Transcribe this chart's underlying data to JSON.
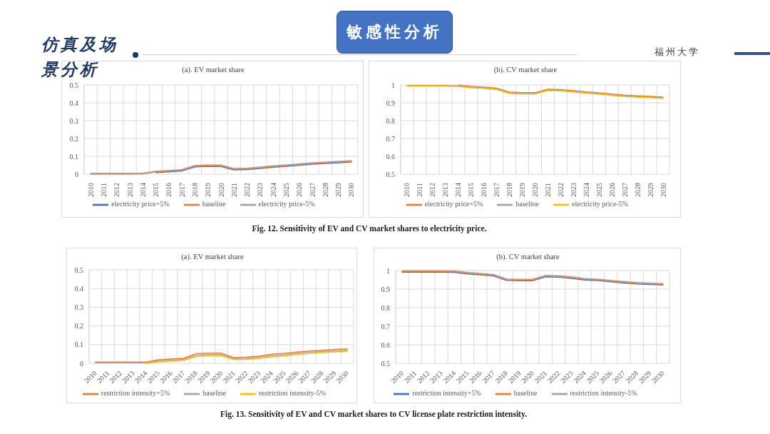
{
  "chart_data": [
    {
      "type": "line",
      "title": "(a). EV market share",
      "categories": [
        "2010",
        "2011",
        "2012",
        "2013",
        "2014",
        "2015",
        "2016",
        "2017",
        "2018",
        "2019",
        "2020",
        "2021",
        "2022",
        "2023",
        "2024",
        "2025",
        "2026",
        "2027",
        "2028",
        "2029",
        "2030"
      ],
      "series": [
        {
          "name": "electricity price+5%",
          "color": "#4472c4",
          "values": [
            null,
            null,
            null,
            null,
            null,
            0.009,
            0.013,
            0.018,
            0.041,
            0.044,
            0.043,
            0.024,
            0.026,
            0.032,
            0.039,
            0.044,
            0.05,
            0.056,
            0.06,
            0.064,
            0.068
          ]
        },
        {
          "name": "baseline",
          "color": "#ed7d31",
          "values": [
            0.001,
            0.001,
            0.001,
            0.001,
            0.002,
            0.013,
            0.017,
            0.022,
            0.045,
            0.048,
            0.047,
            0.028,
            0.03,
            0.036,
            0.043,
            0.048,
            0.054,
            0.06,
            0.064,
            0.068,
            0.072
          ]
        },
        {
          "name": "electricity price-5%",
          "color": "#a5a5a5",
          "values": [
            0.005,
            0.005,
            0.005,
            0.005,
            0.006,
            0.017,
            0.021,
            0.026,
            0.049,
            0.052,
            0.051,
            0.032,
            0.034,
            0.04,
            0.047,
            0.052,
            0.058,
            0.064,
            0.068,
            0.072,
            0.076
          ]
        }
      ],
      "ylim": [
        0,
        0.5
      ],
      "yticks": [
        0,
        0.1,
        0.2,
        0.3,
        0.4,
        0.5
      ],
      "grid": true,
      "legend": "bottom",
      "marker": "none",
      "annotations": [
        "仿真及场景分析",
        "敏感性分析",
        "福州大学",
        "Fig. 12. Sensitivity of EV and CV market shares to electricity price."
      ]
    },
    {
      "type": "line",
      "title": "(b). CV market share",
      "categories": [
        "2010",
        "2011",
        "2012",
        "2013",
        "2014",
        "2015",
        "2016",
        "2017",
        "2018",
        "2019",
        "2020",
        "2021",
        "2022",
        "2023",
        "2024",
        "2025",
        "2026",
        "2027",
        "2028",
        "2029",
        "2030"
      ],
      "series": [
        {
          "name": "electricity price+5%",
          "color": "#ed7d31",
          "values": [
            null,
            null,
            null,
            null,
            0.999,
            0.992,
            0.988,
            0.982,
            0.96,
            0.957,
            0.957,
            0.976,
            0.974,
            0.968,
            0.961,
            0.956,
            0.949,
            0.943,
            0.939,
            0.936,
            0.932
          ]
        },
        {
          "name": "baseline",
          "color": "#a5a5a5",
          "values": [
            0.997,
            0.997,
            0.997,
            0.997,
            0.995,
            0.988,
            0.984,
            0.978,
            0.956,
            0.953,
            0.953,
            0.972,
            0.97,
            0.964,
            0.957,
            0.952,
            0.945,
            0.939,
            0.935,
            0.932,
            0.928
          ]
        },
        {
          "name": "electricity price-5%",
          "color": "#ffc000",
          "values": [
            0.993,
            0.993,
            0.993,
            0.993,
            0.991,
            0.984,
            0.98,
            0.974,
            0.952,
            0.949,
            0.949,
            0.968,
            0.966,
            0.96,
            0.953,
            0.948,
            0.941,
            0.935,
            0.931,
            0.928,
            0.924
          ]
        }
      ],
      "ylim": [
        0.5,
        1
      ],
      "yticks": [
        0.5,
        0.6,
        0.7,
        0.8,
        0.9,
        1
      ],
      "grid": true,
      "legend": "bottom",
      "marker": "none"
    },
    {
      "type": "line",
      "title": "(a). EV market share",
      "categories": [
        "2010",
        "2011",
        "2012",
        "2013",
        "2014",
        "2015",
        "2016",
        "2017",
        "2018",
        "2019",
        "2020",
        "2021",
        "2022",
        "2023",
        "2024",
        "2025",
        "2026",
        "2027",
        "2028",
        "2029",
        "2030"
      ],
      "series": [
        {
          "name": "restriction intensity+5%",
          "color": "#ed7d31",
          "values": [
            0.007,
            0.007,
            0.007,
            0.007,
            0.007,
            0.019,
            0.023,
            0.027,
            0.052,
            0.054,
            0.054,
            0.031,
            0.033,
            0.038,
            0.049,
            0.053,
            0.06,
            0.066,
            0.07,
            0.074,
            0.077
          ]
        },
        {
          "name": "baseline",
          "color": "#a5a5a5",
          "values": [
            0.003,
            0.003,
            0.003,
            0.003,
            0.003,
            0.013,
            0.017,
            0.021,
            0.044,
            0.047,
            0.047,
            0.026,
            0.027,
            0.032,
            0.041,
            0.046,
            0.053,
            0.059,
            0.063,
            0.067,
            0.07
          ]
        },
        {
          "name": "restriction intensity-5%",
          "color": "#ffc000",
          "values": [
            null,
            null,
            null,
            null,
            0.0,
            0.007,
            0.011,
            0.015,
            0.036,
            0.04,
            0.04,
            0.02,
            0.021,
            0.026,
            0.034,
            0.039,
            0.046,
            0.052,
            0.057,
            0.061,
            0.064
          ]
        }
      ],
      "ylim": [
        0,
        0.5
      ],
      "yticks": [
        0,
        0.1,
        0.2,
        0.3,
        0.4,
        0.5
      ],
      "grid": true,
      "legend": "bottom",
      "marker": "none",
      "annotations": [
        "Fig. 13. Sensitivity of EV and CV market shares to CV license plate restriction intensity."
      ]
    },
    {
      "type": "line",
      "title": "(b). CV market share",
      "categories": [
        "2010",
        "2011",
        "2012",
        "2013",
        "2014",
        "2015",
        "2016",
        "2017",
        "2018",
        "2019",
        "2020",
        "2021",
        "2022",
        "2023",
        "2024",
        "2025",
        "2026",
        "2027",
        "2028",
        "2029",
        "2030"
      ],
      "series": [
        {
          "name": "restriction intensity+5%",
          "color": "#4472c4",
          "values": [
            0.991,
            0.991,
            0.991,
            0.991,
            0.99,
            0.982,
            0.977,
            0.971,
            0.947,
            0.945,
            0.945,
            0.966,
            0.964,
            0.958,
            0.949,
            0.946,
            0.939,
            0.933,
            0.928,
            0.925,
            0.922
          ]
        },
        {
          "name": "baseline",
          "color": "#ed7d31",
          "values": [
            0.995,
            0.995,
            0.995,
            0.995,
            0.994,
            0.986,
            0.981,
            0.975,
            0.951,
            0.949,
            0.949,
            0.97,
            0.968,
            0.962,
            0.953,
            0.95,
            0.943,
            0.937,
            0.932,
            0.929,
            0.926
          ]
        },
        {
          "name": "restriction intensity-5%",
          "color": "#a5a5a5",
          "values": [
            0.999,
            0.999,
            0.999,
            0.999,
            0.998,
            0.99,
            0.985,
            0.979,
            0.955,
            0.953,
            0.953,
            0.974,
            0.972,
            0.966,
            0.957,
            0.954,
            0.947,
            0.941,
            0.936,
            0.933,
            0.93
          ]
        }
      ],
      "ylim": [
        0.5,
        1
      ],
      "yticks": [
        0.5,
        0.6,
        0.7,
        0.8,
        0.9,
        1
      ],
      "grid": true,
      "legend": "bottom",
      "marker": "none"
    }
  ]
}
